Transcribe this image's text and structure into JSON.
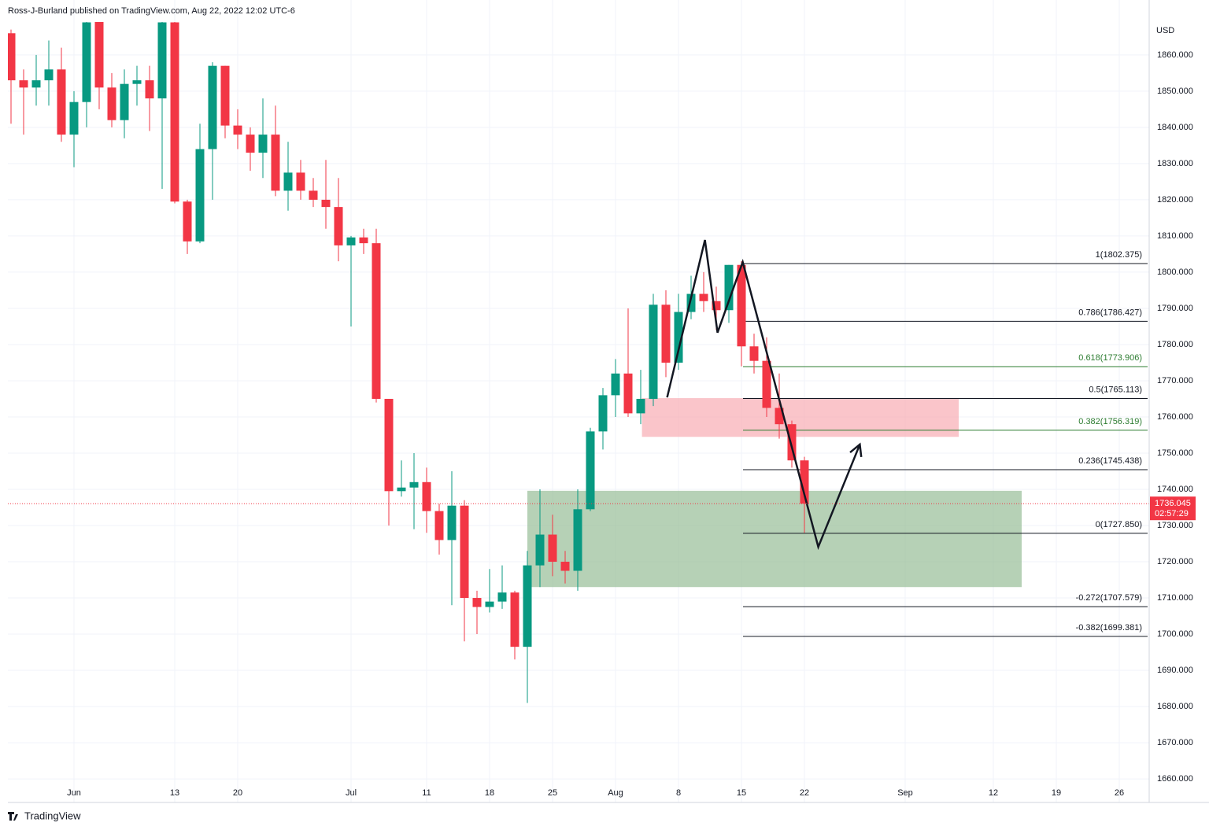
{
  "chart_data": {
    "type": "candlestick",
    "header": "Ross-J-Burland published on TradingView.com, Aug 22, 2022 12:02 UTC-6",
    "currency": "USD",
    "brand": "TradingView",
    "countdown": "02:57:29",
    "up_color": "#089981",
    "down_color": "#f23645",
    "xlim": [
      -0.25,
      90.375
    ],
    "ylim": [
      1653.5,
      1869.1
    ],
    "x": [
      0,
      1,
      2,
      3,
      4,
      5,
      6,
      7,
      8,
      9,
      10,
      11,
      12,
      13,
      14,
      15,
      16,
      17,
      18,
      19,
      20,
      21,
      22,
      23,
      24,
      25,
      26,
      27,
      28,
      29,
      30,
      31,
      32,
      33,
      34,
      35,
      36,
      37,
      38,
      39,
      40,
      41,
      42,
      43,
      44,
      45,
      46,
      47,
      48,
      49,
      50,
      51,
      52,
      53,
      54,
      55,
      56,
      57,
      58,
      59,
      60,
      61,
      62,
      63
    ],
    "open": [
      1866,
      1853,
      1851,
      1853,
      1856,
      1838,
      1847,
      1870,
      1851,
      1842,
      1852,
      1853,
      1848,
      1869,
      1819.5,
      1808.5,
      1834,
      1857,
      1840.5,
      1838,
      1833,
      1838,
      1822.5,
      1827.5,
      1822.5,
      1820,
      1818,
      1807.4,
      1809.6,
      1808,
      1765,
      1739.5,
      1740.5,
      1742,
      1734,
      1726,
      1735.5,
      1710,
      1707.5,
      1709,
      1711.5,
      1696.5,
      1719,
      1727.5,
      1720,
      1717.5,
      1734.5,
      1756,
      1766,
      1772,
      1761,
      1765,
      1791,
      1775,
      1789,
      1794,
      1792,
      1789.5,
      1802,
      1779.5,
      1775.5,
      1762.5,
      1758,
      1748
    ],
    "high": [
      1867,
      1856,
      1860,
      1864,
      1862,
      1850,
      1872,
      1872,
      1855,
      1856,
      1857,
      1857,
      1872,
      1872,
      1820,
      1841,
      1858,
      1857,
      1845,
      1840,
      1848,
      1846,
      1836,
      1831,
      1826,
      1831,
      1826,
      1810,
      1812,
      1812,
      1765,
      1748,
      1750,
      1746,
      1736,
      1745,
      1737,
      1712,
      1718,
      1719,
      1712,
      1723,
      1740,
      1733,
      1723,
      1740,
      1757,
      1768,
      1776,
      1790,
      1773,
      1794,
      1795,
      1794,
      1799,
      1800,
      1796,
      1802,
      1803,
      1783,
      1782,
      1772,
      1759,
      1749
    ],
    "low": [
      1841,
      1838,
      1846,
      1846,
      1836,
      1829,
      1840,
      1845,
      1840,
      1837,
      1846,
      1839,
      1823,
      1819,
      1805,
      1808,
      1820,
      1837,
      1834,
      1828,
      1826,
      1821,
      1817,
      1820,
      1818,
      1812,
      1803,
      1785,
      1805,
      1764,
      1730,
      1738,
      1729,
      1728,
      1722,
      1708,
      1698,
      1700,
      1706,
      1707,
      1693,
      1681,
      1713,
      1716,
      1714,
      1712,
      1734,
      1751,
      1760,
      1760,
      1758,
      1763,
      1771,
      1773,
      1787,
      1789,
      1784,
      1786,
      1774,
      1772,
      1760,
      1754,
      1746,
      1728
    ],
    "close": [
      1853,
      1851,
      1853,
      1856,
      1838,
      1847,
      1869,
      1851,
      1842,
      1852,
      1853,
      1848,
      1869,
      1819.5,
      1808.5,
      1834,
      1857,
      1840.5,
      1838,
      1833,
      1838,
      1822.5,
      1827.5,
      1822.5,
      1820,
      1818,
      1807.4,
      1809.6,
      1808,
      1765,
      1739.5,
      1740.5,
      1742,
      1734,
      1726,
      1735.5,
      1710,
      1707.5,
      1709,
      1711.5,
      1696.5,
      1719,
      1727.5,
      1720,
      1717.5,
      1734.5,
      1756,
      1766,
      1772,
      1761,
      1765,
      1791,
      1775,
      1789,
      1794,
      1792,
      1789.5,
      1802,
      1779.5,
      1775.5,
      1762.5,
      1758,
      1748,
      1736.045
    ],
    "xticks": [
      {
        "value": 5,
        "label": "Jun"
      },
      {
        "value": 13,
        "label": "13"
      },
      {
        "value": 18,
        "label": "20"
      },
      {
        "value": 27,
        "label": "Jul"
      },
      {
        "value": 33,
        "label": "11"
      },
      {
        "value": 38,
        "label": "18"
      },
      {
        "value": 43,
        "label": "25"
      },
      {
        "value": 48,
        "label": "Aug"
      },
      {
        "value": 53,
        "label": "8"
      },
      {
        "value": 58,
        "label": "15"
      },
      {
        "value": 63,
        "label": "22"
      },
      {
        "value": 71,
        "label": "Sep"
      },
      {
        "value": 78,
        "label": "12"
      },
      {
        "value": 83,
        "label": "19"
      },
      {
        "value": 88,
        "label": "26"
      }
    ],
    "yticks": [
      {
        "value": 1660,
        "label": "1660.000"
      },
      {
        "value": 1670,
        "label": "1670.000"
      },
      {
        "value": 1680,
        "label": "1680.000"
      },
      {
        "value": 1690,
        "label": "1690.000"
      },
      {
        "value": 1700,
        "label": "1700.000"
      },
      {
        "value": 1710,
        "label": "1710.000"
      },
      {
        "value": 1720,
        "label": "1720.000"
      },
      {
        "value": 1730,
        "label": "1730.000"
      },
      {
        "value": 1740,
        "label": "1740.000"
      },
      {
        "value": 1750,
        "label": "1750.000"
      },
      {
        "value": 1760,
        "label": "1760.000"
      },
      {
        "value": 1770,
        "label": "1770.000"
      },
      {
        "value": 1780,
        "label": "1780.000"
      },
      {
        "value": 1790,
        "label": "1790.000"
      },
      {
        "value": 1800,
        "label": "1800.000"
      },
      {
        "value": 1810,
        "label": "1810.000"
      },
      {
        "value": 1820,
        "label": "1820.000"
      },
      {
        "value": 1830,
        "label": "1830.000"
      },
      {
        "value": 1840,
        "label": "1840.000"
      },
      {
        "value": 1850,
        "label": "1850.000"
      },
      {
        "value": 1860,
        "label": "1860.000"
      }
    ],
    "grid": true,
    "zones": [
      {
        "x": [
          50.1,
          75.25
        ],
        "y": [
          1754.5,
          1765.2
        ],
        "color": "#f7a6ad"
      },
      {
        "x": [
          41,
          80.25
        ],
        "y": [
          1713,
          1739.6
        ],
        "color": "#8fb98f"
      }
    ],
    "fib_start": 58.125,
    "fib_levels": [
      {
        "label": "1(1802.375)",
        "value": 1802.375,
        "color": "#131722"
      },
      {
        "label": "0.786(1786.427)",
        "value": 1786.427,
        "color": "#131722"
      },
      {
        "label": "0.618(1773.906)",
        "value": 1773.906,
        "color": "#2e7d32"
      },
      {
        "label": "0.5(1765.113)",
        "value": 1765.113,
        "color": "#131722"
      },
      {
        "label": "0.382(1756.319)",
        "value": 1756.319,
        "color": "#2e7d32"
      },
      {
        "label": "0.236(1745.438)",
        "value": 1745.438,
        "color": "#131722"
      },
      {
        "label": "0(1727.850)",
        "value": 1727.85,
        "color": "#131722"
      },
      {
        "label": "-0.272(1707.579)",
        "value": 1707.579,
        "color": "#131722"
      },
      {
        "label": "-0.382(1699.381)",
        "value": 1699.381,
        "color": "#131722"
      }
    ],
    "drawing": {
      "x": [
        52.1,
        55.1,
        56.1,
        58.1,
        64.1,
        67.4
      ],
      "y": [
        1765.4,
        1808.9,
        1783.3,
        1802.8,
        1724.1,
        1752.4
      ]
    }
  }
}
